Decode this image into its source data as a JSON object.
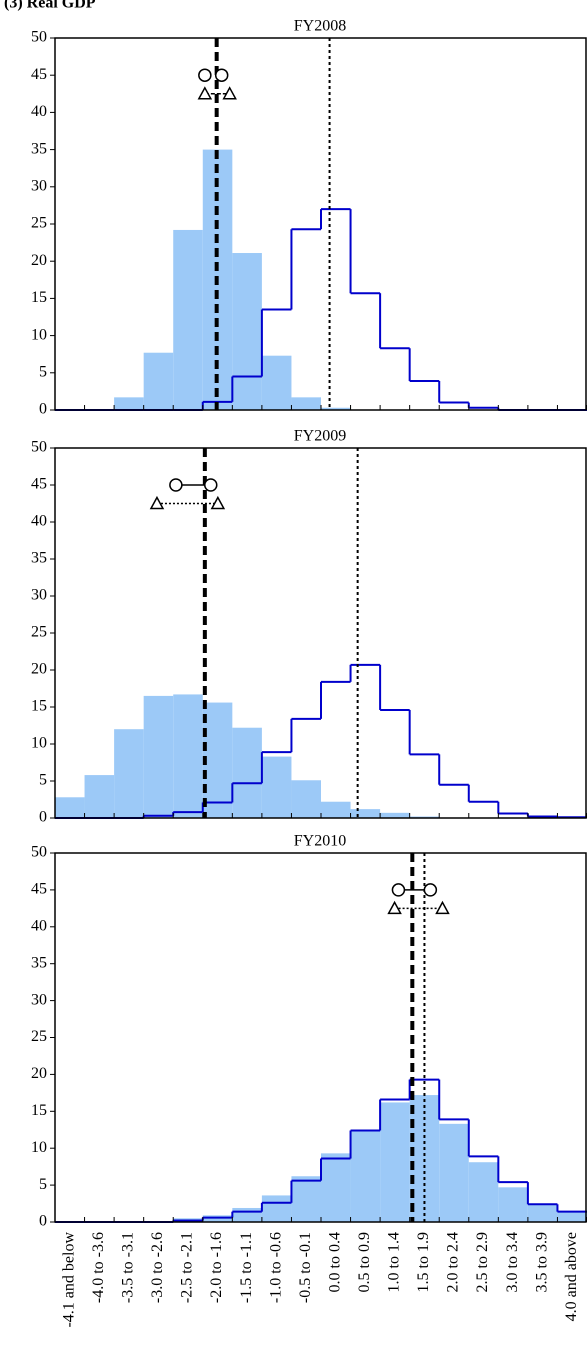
{
  "title": "(3) Real GDP",
  "chart_data": [
    {
      "type": "bar",
      "title": "FY2008",
      "ylim": [
        0,
        50
      ],
      "yticks": [
        0,
        5,
        10,
        15,
        20,
        25,
        30,
        35,
        40,
        45,
        50
      ],
      "series": [
        {
          "style": "filled",
          "color": "#9cc9f7",
          "values": [
            0,
            0,
            1.7,
            7.7,
            24.2,
            35,
            21.1,
            7.3,
            1.7,
            0.3,
            0,
            0,
            0,
            0,
            0,
            0,
            0,
            0
          ]
        },
        {
          "style": "step",
          "color": "#0000cc",
          "values": [
            0,
            0,
            0,
            0,
            0,
            1.1,
            4.5,
            13.5,
            24.3,
            27,
            15.7,
            8.3,
            3.9,
            1,
            0.3,
            0,
            0,
            0
          ]
        }
      ],
      "reference_lines": [
        {
          "style": "dashed",
          "x": 5.47
        },
        {
          "style": "dotted",
          "x": 9.29
        }
      ],
      "markers": [
        {
          "shape": "circle",
          "x": [
            5.07,
            5.64
          ],
          "y": 45,
          "link": "none"
        },
        {
          "shape": "triangle",
          "x": [
            5.07,
            5.91
          ],
          "y": 42.5,
          "link": "dashed"
        }
      ]
    },
    {
      "type": "bar",
      "title": "FY2009",
      "ylim": [
        0,
        50
      ],
      "yticks": [
        0,
        5,
        10,
        15,
        20,
        25,
        30,
        35,
        40,
        45,
        50
      ],
      "series": [
        {
          "style": "filled",
          "color": "#9cc9f7",
          "values": [
            2.8,
            5.8,
            12,
            16.5,
            16.7,
            15.6,
            12.2,
            8.3,
            5.1,
            2.2,
            1.2,
            0.7,
            0.2,
            0,
            0,
            0,
            0,
            0
          ]
        },
        {
          "style": "step",
          "color": "#0000cc",
          "values": [
            0,
            0,
            0,
            0.3,
            0.8,
            2.1,
            4.7,
            8.9,
            13.4,
            18.4,
            20.7,
            14.6,
            8.6,
            4.5,
            2.2,
            0.6,
            0.2,
            0.1
          ]
        }
      ],
      "reference_lines": [
        {
          "style": "dashed",
          "x": 5.07
        },
        {
          "style": "dotted",
          "x": 10.24
        }
      ],
      "markers": [
        {
          "shape": "circle",
          "x": [
            4.09,
            5.27
          ],
          "y": 45,
          "link": "solid"
        },
        {
          "shape": "triangle",
          "x": [
            3.45,
            5.51
          ],
          "y": 42.5,
          "link": "dotted"
        }
      ]
    },
    {
      "type": "bar",
      "title": "FY2010",
      "ylim": [
        0,
        50
      ],
      "yticks": [
        0,
        5,
        10,
        15,
        20,
        25,
        30,
        35,
        40,
        45,
        50
      ],
      "categories": [
        "-4.1 and below",
        "-4.0 to -3.6",
        "-3.5 to -3.1",
        "-3.0 to -2.6",
        "-2.5 to -2.1",
        "-2.0 to -1.6",
        "-1.5 to -1.1",
        "-1.0 to -0.6",
        "-0.5 to -0.1",
        "0.0 to 0.4",
        "0.5 to 0.9",
        "1.0 to 1.4",
        "1.5 to 1.9",
        "2.0 to 2.4",
        "2.5 to 2.9",
        "3.0 to 3.4",
        "3.5 to 3.9",
        "4.0 and above"
      ],
      "series": [
        {
          "style": "filled",
          "color": "#9cc9f7",
          "values": [
            0,
            0,
            0,
            0,
            0.5,
            0.9,
            1.9,
            3.6,
            6.2,
            9.3,
            12.5,
            16.2,
            17.2,
            13.3,
            8.1,
            4.7,
            2.3,
            1.5
          ]
        },
        {
          "style": "step",
          "color": "#0000cc",
          "values": [
            0,
            0,
            0,
            0,
            0.2,
            0.6,
            1.4,
            2.6,
            5.6,
            8.6,
            12.4,
            16.6,
            19.3,
            13.9,
            8.9,
            5.4,
            2.4,
            1.4
          ]
        }
      ],
      "reference_lines": [
        {
          "style": "dashed",
          "x": 12.09
        },
        {
          "style": "dotted",
          "x": 12.5
        }
      ],
      "markers": [
        {
          "shape": "circle",
          "x": [
            11.62,
            12.7
          ],
          "y": 45,
          "link": "solid"
        },
        {
          "shape": "triangle",
          "x": [
            11.49,
            13.11
          ],
          "y": 42.5,
          "link": "dotted"
        }
      ]
    }
  ]
}
